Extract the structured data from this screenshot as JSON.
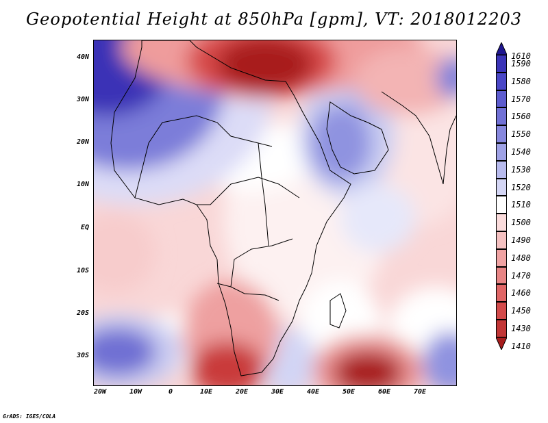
{
  "title": "Geopotential Height at 850hPa [gpm], VT: 2018012203",
  "credit": "GrADS: IGES/COLA",
  "map": {
    "lat_labels": [
      "40N",
      "30N",
      "20N",
      "10N",
      "EQ",
      "10S",
      "20S",
      "30S"
    ],
    "lon_labels": [
      "20W",
      "10W",
      "0",
      "10E",
      "20E",
      "30E",
      "40E",
      "50E",
      "60E",
      "70E"
    ],
    "features": [
      "blue-high-northwest-africa",
      "red-low-mediterranean",
      "blue-arabia",
      "red-low-south-africa",
      "red-low-southwest-indian-ocean",
      "blue-south-atlantic"
    ]
  },
  "colorbar": {
    "labels": [
      "1610",
      "1590",
      "1580",
      "1570",
      "1560",
      "1550",
      "1540",
      "1530",
      "1520",
      "1510",
      "1500",
      "1490",
      "1480",
      "1470",
      "1460",
      "1450",
      "1430",
      "1410"
    ],
    "colors": [
      "#2a1f9c",
      "#3b34b8",
      "#4a47c7",
      "#5d5ccf",
      "#7171d6",
      "#8788de",
      "#9fa2e6",
      "#b8bbee",
      "#d4d6f5",
      "#ffffff",
      "#fbdcdc",
      "#f5c1c1",
      "#f0a3a3",
      "#e88585",
      "#e06666",
      "#d34b4b",
      "#c23636",
      "#a61c1c"
    ]
  }
}
